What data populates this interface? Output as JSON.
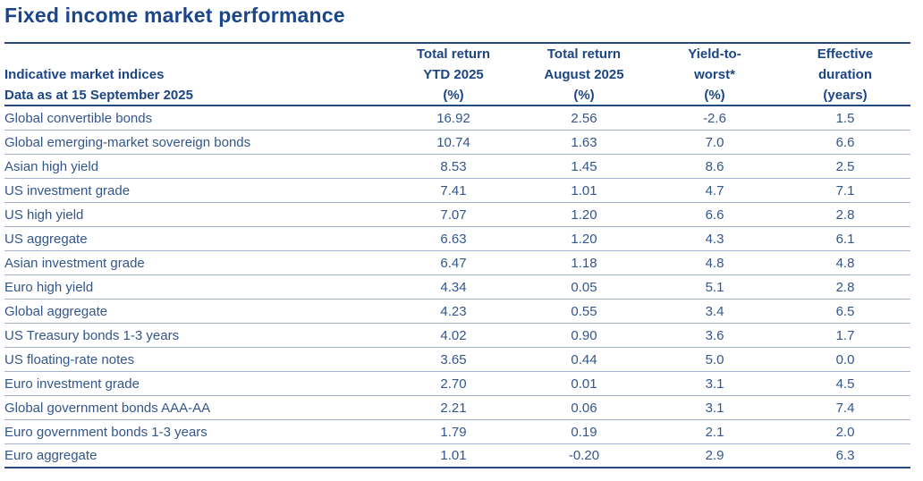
{
  "page_title": "Fixed income market performance",
  "chart_data": {
    "type": "table",
    "title": "Fixed income market performance",
    "row_header": {
      "line1": "Indicative market indices",
      "line2": "Data as at 15 September 2025"
    },
    "columns": [
      {
        "line1": "Total return",
        "line2": "YTD 2025",
        "line3": "(%)"
      },
      {
        "line1": "Total return",
        "line2": "August 2025",
        "line3": "(%)"
      },
      {
        "line1": "Yield-to-",
        "line2": "worst*",
        "line3": "(%)"
      },
      {
        "line1": "Effective",
        "line2": "duration",
        "line3": "(years)"
      }
    ],
    "column_keys": [
      "total_return_ytd_2025_pct",
      "total_return_august_2025_pct",
      "yield_to_worst_pct",
      "effective_duration_years"
    ],
    "rows": [
      {
        "label": "Global convertible bonds",
        "values": [
          "16.92",
          "2.56",
          "-2.6",
          "1.5"
        ]
      },
      {
        "label": "Global emerging-market sovereign bonds",
        "values": [
          "10.74",
          "1.63",
          "7.0",
          "6.6"
        ]
      },
      {
        "label": "Asian high yield",
        "values": [
          "8.53",
          "1.45",
          "8.6",
          "2.5"
        ]
      },
      {
        "label": "US investment grade",
        "values": [
          "7.41",
          "1.01",
          "4.7",
          "7.1"
        ]
      },
      {
        "label": "US high yield",
        "values": [
          "7.07",
          "1.20",
          "6.6",
          "2.8"
        ]
      },
      {
        "label": "US aggregate",
        "values": [
          "6.63",
          "1.20",
          "4.3",
          "6.1"
        ]
      },
      {
        "label": "Asian investment grade",
        "values": [
          "6.47",
          "1.18",
          "4.8",
          "4.8"
        ]
      },
      {
        "label": "Euro high yield",
        "values": [
          "4.34",
          "0.05",
          "5.1",
          "2.8"
        ]
      },
      {
        "label": "Global aggregate",
        "values": [
          "4.23",
          "0.55",
          "3.4",
          "6.5"
        ]
      },
      {
        "label": "US Treasury bonds 1-3 years",
        "values": [
          "4.02",
          "0.90",
          "3.6",
          "1.7"
        ]
      },
      {
        "label": "US floating-rate notes",
        "values": [
          "3.65",
          "0.44",
          "5.0",
          "0.0"
        ]
      },
      {
        "label": "Euro investment grade",
        "values": [
          "2.70",
          "0.01",
          "3.1",
          "4.5"
        ]
      },
      {
        "label": "Global government bonds AAA-AA",
        "values": [
          "2.21",
          "0.06",
          "3.1",
          "7.4"
        ]
      },
      {
        "label": "Euro government bonds 1-3 years",
        "values": [
          "1.79",
          "0.19",
          "2.1",
          "2.0"
        ]
      },
      {
        "label": "Euro aggregate",
        "values": [
          "1.01",
          "-0.20",
          "2.9",
          "6.3"
        ]
      }
    ]
  },
  "colors": {
    "title_text": "#1b468c",
    "header_text": "#1c4584",
    "body_text": "#33568b",
    "rule_strong": "#27497e",
    "rule_light": "#a3b3cd",
    "background": "#ffffff"
  }
}
